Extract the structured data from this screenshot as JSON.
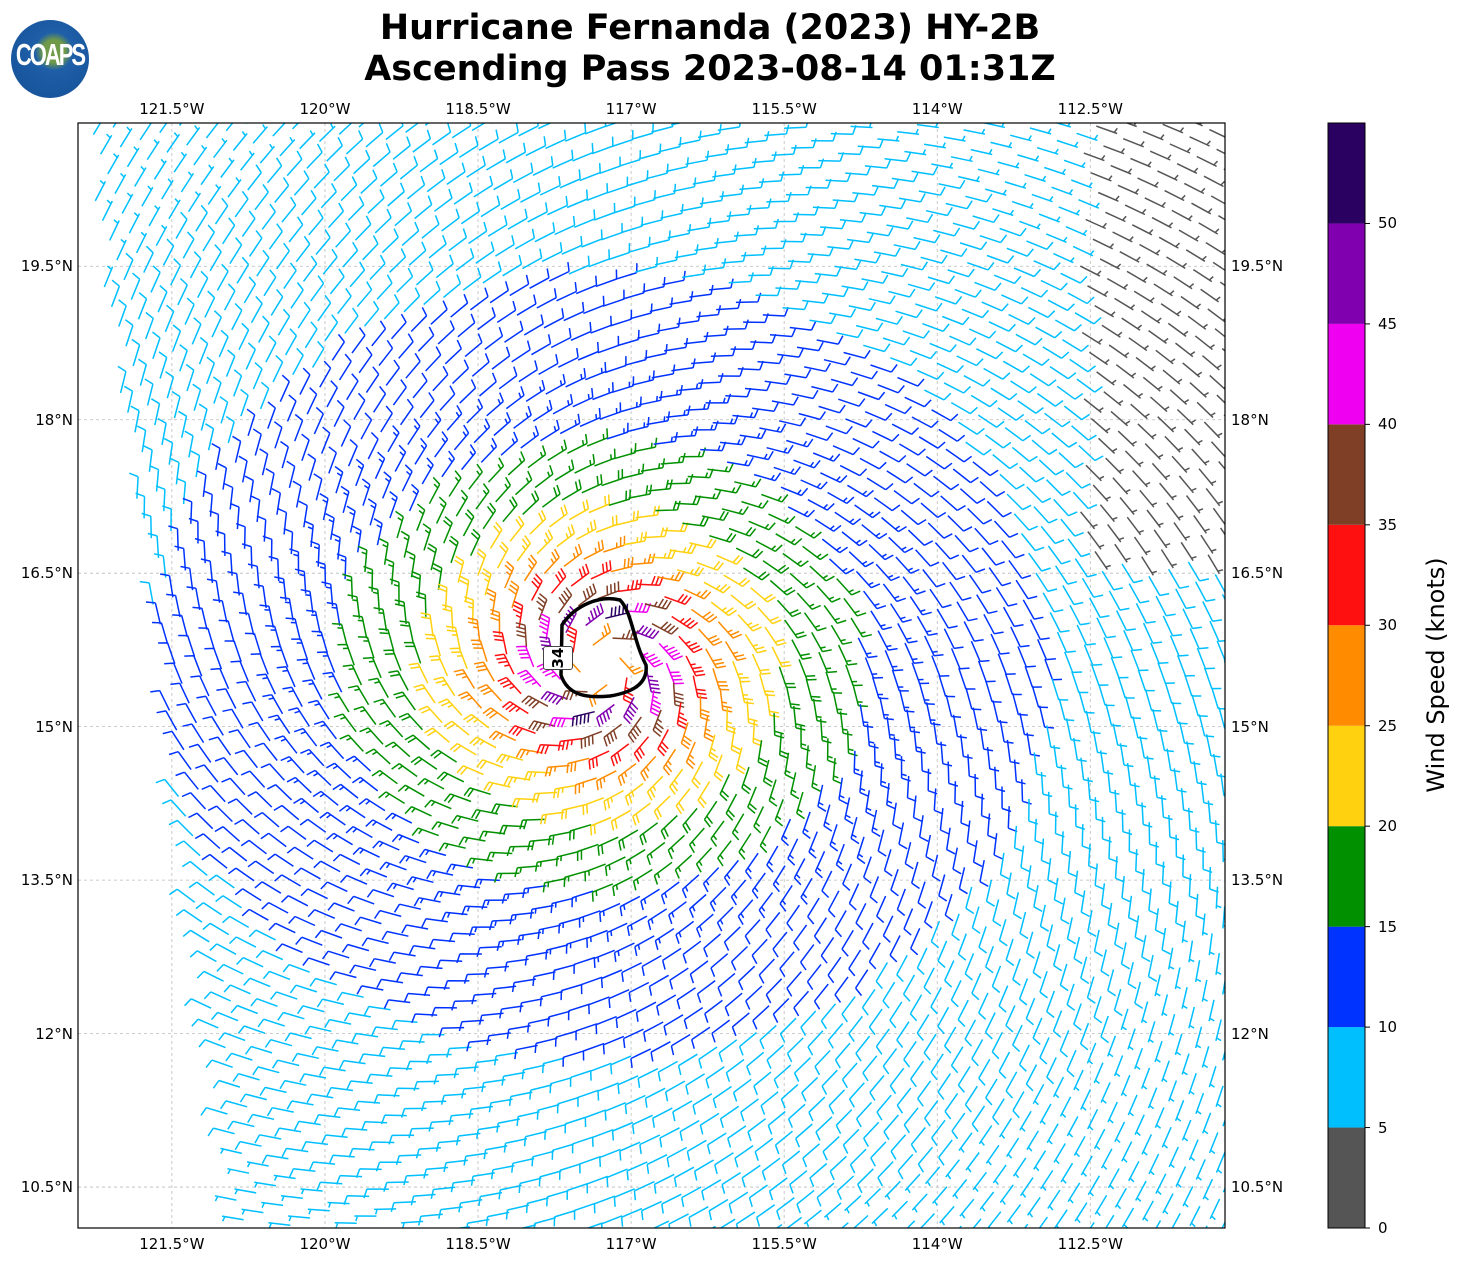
{
  "title": {
    "line1": "Hurricane Fernanda (2023) HY-2B",
    "line2": "Ascending Pass 2023-08-14 01:31Z"
  },
  "logo": {
    "text": "COAPS"
  },
  "map": {
    "lon_ticks": [
      "121.5°W",
      "120°W",
      "118.5°W",
      "117°W",
      "115.5°W",
      "114°W",
      "112.5°W"
    ],
    "lon_values": [
      -121.5,
      -120,
      -118.5,
      -117,
      -115.5,
      -114,
      -112.5
    ],
    "lat_ticks": [
      "19.5°N",
      "18°N",
      "16.5°N",
      "15°N",
      "13.5°N",
      "12°N",
      "10.5°N"
    ],
    "lat_values": [
      19.5,
      18,
      16.5,
      15,
      13.5,
      12,
      10.5
    ],
    "lon_range": [
      -122.42,
      -111.18
    ],
    "lat_range": [
      10.1,
      20.9
    ],
    "gridlines": true,
    "contour_label": "34",
    "contour_color": "#000000"
  },
  "colorbar": {
    "label": "Wind Speed (knots)",
    "ticks": [
      "0",
      "5",
      "10",
      "15",
      "20",
      "25",
      "30",
      "35",
      "40",
      "45",
      "50"
    ],
    "range": [
      0,
      55
    ],
    "bins": [
      {
        "from": 0,
        "to": 5,
        "color": "#555555"
      },
      {
        "from": 5,
        "to": 10,
        "color": "#00bfff"
      },
      {
        "from": 10,
        "to": 15,
        "color": "#0033ff"
      },
      {
        "from": 15,
        "to": 20,
        "color": "#009000"
      },
      {
        "from": 20,
        "to": 25,
        "color": "#ffd10f"
      },
      {
        "from": 25,
        "to": 30,
        "color": "#ff8c00"
      },
      {
        "from": 30,
        "to": 35,
        "color": "#ff1010"
      },
      {
        "from": 35,
        "to": 40,
        "color": "#7f3f26"
      },
      {
        "from": 40,
        "to": 45,
        "color": "#f000f0"
      },
      {
        "from": 45,
        "to": 50,
        "color": "#8000b0"
      },
      {
        "from": 50,
        "to": 55,
        "color": "#2a0060"
      }
    ]
  }
}
